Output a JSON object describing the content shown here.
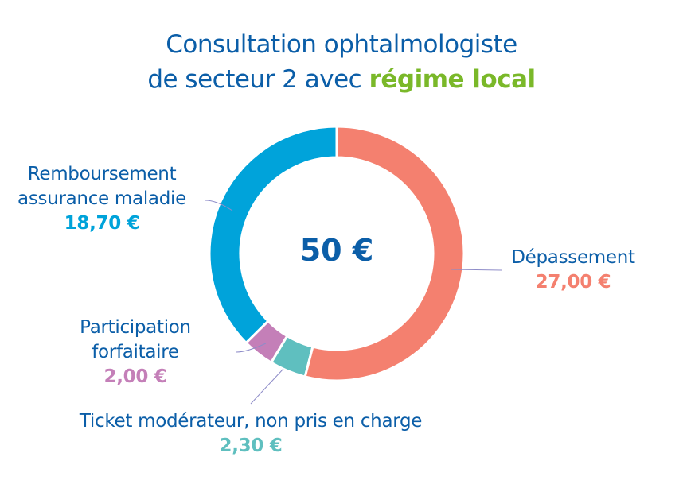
{
  "title": {
    "line1": "Consultation ophtalmologiste",
    "line2_prefix": "de secteur 2 avec ",
    "line2_highlight": "régime local"
  },
  "colors": {
    "title": "#0B5EA8",
    "highlight": "#7AB829",
    "leader": "#8E8CC8"
  },
  "chart_data": {
    "type": "pie",
    "variant": "donut",
    "title": "Consultation ophtalmologiste de secteur 2 avec régime local",
    "center_label": "50 €",
    "total": 50,
    "slices": [
      {
        "name": "Dépassement",
        "value": 27.0,
        "value_label": "27,00 €",
        "color": "#F4806F"
      },
      {
        "name": "Ticket modérateur, non pris en charge",
        "value": 2.3,
        "value_label": "2,30 €",
        "color": "#5FBFBF"
      },
      {
        "name": "Participation forfaitaire",
        "value": 2.0,
        "value_label": "2,00 €",
        "color": "#C47FB8"
      },
      {
        "name": "Remboursement assurance maladie",
        "value": 18.7,
        "value_label": "18,70 €",
        "color": "#00A3DA"
      }
    ],
    "labels": {
      "depassement": [
        "Dépassement"
      ],
      "ticket": [
        "Ticket modérateur, non pris en charge"
      ],
      "participation": [
        "Participation",
        "forfaitaire"
      ],
      "remboursement": [
        "Remboursement",
        "assurance maladie"
      ]
    }
  }
}
